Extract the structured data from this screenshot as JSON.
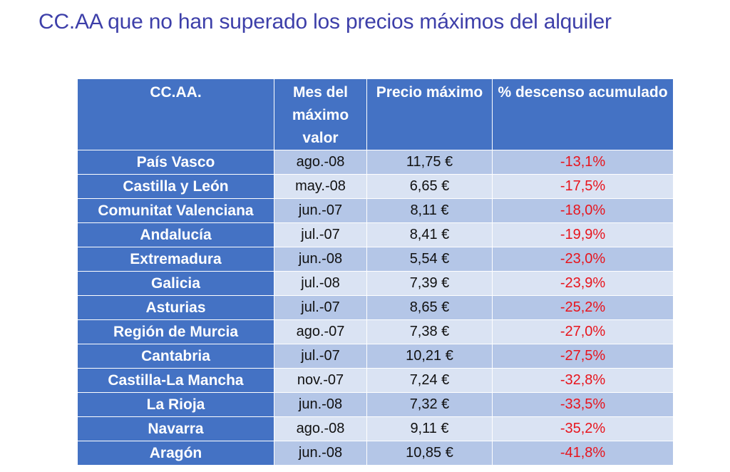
{
  "title": "CC.AA que no han superado los precios máximos del alquiler",
  "table": {
    "headers": {
      "region": "CC.AA.",
      "month": "Mes del máximo valor",
      "price": "Precio máximo",
      "decline": "% descenso acumulado"
    },
    "rows": [
      {
        "region": "País Vasco",
        "month": "ago.-08",
        "price": "11,75 €",
        "decline": "-13,1%"
      },
      {
        "region": "Castilla y León",
        "month": "may.-08",
        "price": "6,65 €",
        "decline": "-17,5%"
      },
      {
        "region": "Comunitat Valenciana",
        "month": "jun.-07",
        "price": "8,11 €",
        "decline": "-18,0%"
      },
      {
        "region": "Andalucía",
        "month": "jul.-07",
        "price": "8,41 €",
        "decline": "-19,9%"
      },
      {
        "region": "Extremadura",
        "month": "jun.-08",
        "price": "5,54 €",
        "decline": "-23,0%"
      },
      {
        "region": "Galicia",
        "month": "jul.-08",
        "price": "7,39 €",
        "decline": "-23,9%"
      },
      {
        "region": "Asturias",
        "month": "jul.-07",
        "price": "8,65 €",
        "decline": "-25,2%"
      },
      {
        "region": "Región de Murcia",
        "month": "ago.-07",
        "price": "7,38 €",
        "decline": "-27,0%"
      },
      {
        "region": "Cantabria",
        "month": "jul.-07",
        "price": "10,21 €",
        "decline": "-27,5%"
      },
      {
        "region": "Castilla-La Mancha",
        "month": "nov.-07",
        "price": "7,24 €",
        "decline": "-32,8%"
      },
      {
        "region": "La Rioja",
        "month": "jun.-08",
        "price": "7,32 €",
        "decline": "-33,5%"
      },
      {
        "region": "Navarra",
        "month": "ago.-08",
        "price": "9,11 €",
        "decline": "-35,2%"
      },
      {
        "region": "Aragón",
        "month": "jun.-08",
        "price": "10,85 €",
        "decline": "-41,8%"
      }
    ]
  },
  "colors": {
    "title": "#3d3fa9",
    "header_bg": "#4472c4",
    "row_alt_1": "#b4c6e7",
    "row_alt_2": "#dae3f3",
    "negative_value": "#e8141c"
  }
}
